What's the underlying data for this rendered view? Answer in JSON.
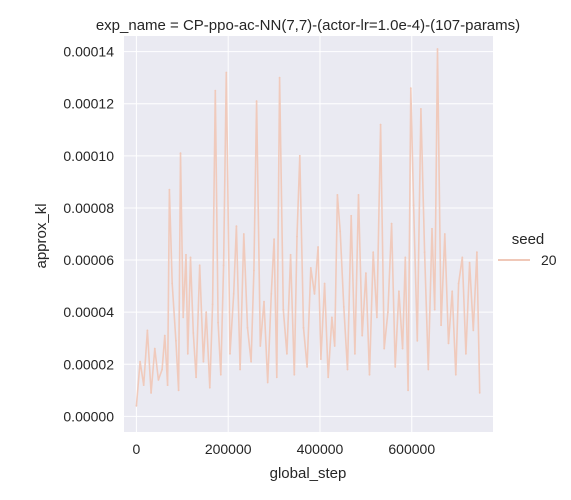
{
  "chart_data": {
    "type": "line",
    "title": "exp_name = CP-ppo-ac-NN(7,7)-(actor-lr=1.0e-4)-(107-params)",
    "xlabel": "global_step",
    "ylabel": "approx_kl",
    "xlim": [
      -27000,
      777000
    ],
    "ylim": [
      -6e-06,
      0.000146
    ],
    "xticks": [
      0,
      200000,
      400000,
      600000
    ],
    "xtick_labels": [
      "0",
      "200000",
      "400000",
      "600000"
    ],
    "yticks": [
      0.0,
      2e-05,
      4e-05,
      6e-05,
      8e-05,
      0.0001,
      0.00012,
      0.00014
    ],
    "ytick_labels": [
      "0.00000",
      "0.00002",
      "0.00004",
      "0.00006",
      "0.00008",
      "0.00010",
      "0.00012",
      "0.00014"
    ],
    "grid": true,
    "legend": {
      "title": "seed",
      "placement": "right",
      "entries": [
        "20"
      ]
    },
    "colors": {
      "background": "#eaeaf2",
      "grid": "#ffffff",
      "line": "#f0c8b8"
    },
    "series": [
      {
        "name": "20",
        "x": [
          0,
          8000,
          16000,
          24000,
          32000,
          40000,
          48000,
          56000,
          62000,
          68000,
          72000,
          78000,
          86000,
          92000,
          96000,
          102000,
          108000,
          112000,
          118000,
          124000,
          130000,
          138000,
          146000,
          152000,
          160000,
          166000,
          172000,
          178000,
          184000,
          190000,
          196000,
          204000,
          212000,
          218000,
          226000,
          234000,
          242000,
          250000,
          256000,
          262000,
          270000,
          278000,
          286000,
          294000,
          300000,
          306000,
          312000,
          320000,
          328000,
          336000,
          344000,
          350000,
          356000,
          364000,
          372000,
          380000,
          388000,
          396000,
          402000,
          410000,
          418000,
          426000,
          432000,
          438000,
          444000,
          452000,
          460000,
          468000,
          476000,
          484000,
          492000,
          500000,
          508000,
          516000,
          524000,
          532000,
          540000,
          548000,
          556000,
          564000,
          572000,
          580000,
          586000,
          592000,
          598000,
          604000,
          612000,
          620000,
          628000,
          636000,
          644000,
          650000,
          656000,
          664000,
          672000,
          680000,
          688000,
          696000,
          702000,
          710000,
          718000,
          726000,
          734000,
          742000,
          748000
        ],
        "y": [
          4e-06,
          2.1e-05,
          1.2e-05,
          3.3e-05,
          9e-06,
          2.6e-05,
          1.4e-05,
          1.8e-05,
          3.1e-05,
          1.2e-05,
          8.7e-05,
          5.1e-05,
          2.9e-05,
          1e-05,
          0.000101,
          3.8e-05,
          6.2e-05,
          2.4e-05,
          6.1e-05,
          3.2e-05,
          1.5e-05,
          5.8e-05,
          2.1e-05,
          4e-05,
          1.1e-05,
          4.3e-05,
          0.000125,
          3.6e-05,
          1.6e-05,
          5.8e-05,
          0.000132,
          2.4e-05,
          4.7e-05,
          7.3e-05,
          1.8e-05,
          7e-05,
          3.4e-05,
          2.1e-05,
          5.6e-05,
          0.000121,
          2.7e-05,
          4.4e-05,
          1.3e-05,
          4.7e-05,
          6.8e-05,
          1.5e-05,
          0.00013,
          4.1e-05,
          2.4e-05,
          6.2e-05,
          1.6e-05,
          6.9e-05,
          0.0001,
          3.4e-05,
          1.9e-05,
          5.7e-05,
          4.7e-05,
          6.5e-05,
          2.2e-05,
          5.1e-05,
          1.5e-05,
          3.8e-05,
          2.7e-05,
          8.5e-05,
          7.1e-05,
          4.2e-05,
          1.8e-05,
          7.7e-05,
          2.4e-05,
          8.5e-05,
          3.1e-05,
          5.5e-05,
          1.6e-05,
          6.3e-05,
          3.8e-05,
          0.000112,
          2.6e-05,
          4e-05,
          7.4e-05,
          1.9e-05,
          4.8e-05,
          2.6e-05,
          6.1e-05,
          1e-05,
          0.000126,
          8.1e-05,
          2.9e-05,
          0.000118,
          6.3e-05,
          1.8e-05,
          7.2e-05,
          4.1e-05,
          0.000141,
          3.5e-05,
          7e-05,
          2.8e-05,
          4.8e-05,
          1.6e-05,
          5.1e-05,
          6.1e-05,
          2.4e-05,
          5.9e-05,
          3.3e-05,
          6.3e-05,
          9e-06
        ]
      }
    ]
  }
}
